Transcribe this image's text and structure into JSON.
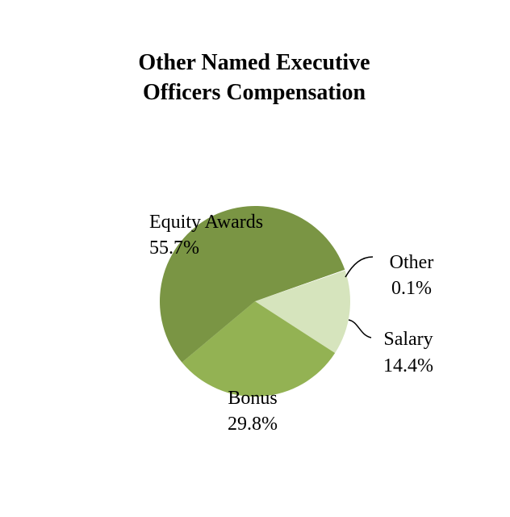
{
  "chart_data": {
    "type": "pie",
    "title": "Other Named Executive Officers Compensation",
    "title_lines": [
      "Other Named Executive",
      "Officers Compensation"
    ],
    "slices": [
      {
        "name": "Salary",
        "value": 14.4,
        "label": "14.4%",
        "color": "#d6e4bd"
      },
      {
        "name": "Bonus",
        "value": 29.8,
        "label": "29.8%",
        "color": "#93b253"
      },
      {
        "name": "Equity Awards",
        "value": 55.7,
        "label": "55.7%",
        "color": "#7a9544"
      },
      {
        "name": "Other",
        "value": 0.1,
        "label": "0.1%",
        "color": "#ffffff"
      }
    ],
    "legend": "none"
  }
}
